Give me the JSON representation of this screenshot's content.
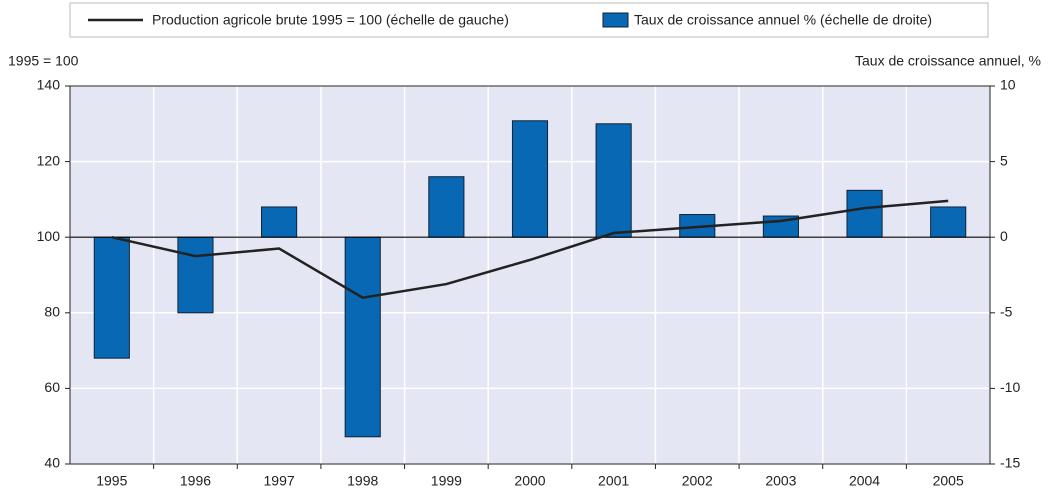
{
  "chart_data": {
    "type": "bar-line",
    "y_label": "1995 = 100",
    "y2_label": "Taux de croissance annuel, %",
    "categories": [
      "1995",
      "1996",
      "1997",
      "1998",
      "1999",
      "2000",
      "2001",
      "2002",
      "2003",
      "2004",
      "2005"
    ],
    "series": [
      {
        "name": "Production agricole brute 1995 = 100 (échelle de gauche)",
        "type": "line",
        "color": "#222222",
        "axis": "y",
        "values": [
          100,
          95,
          97,
          84,
          87.6,
          94,
          101.1,
          102.7,
          104.3,
          107.7,
          109.6
        ]
      },
      {
        "name": "Taux de croissance annuel % (échelle de droite)",
        "type": "bar",
        "color": "#0868b4",
        "axis": "y2",
        "values": [
          -8,
          -5,
          2,
          -13.2,
          4,
          7.7,
          7.5,
          1.5,
          1.4,
          3.1,
          2
        ]
      }
    ],
    "ylim": [
      40,
      140
    ],
    "yticks": [
      40,
      60,
      80,
      100,
      120,
      140
    ],
    "y2lim": [
      -15,
      10
    ],
    "y2ticks": [
      -15,
      -10,
      -5,
      0,
      5,
      10
    ],
    "grid": true,
    "legend": "top"
  }
}
